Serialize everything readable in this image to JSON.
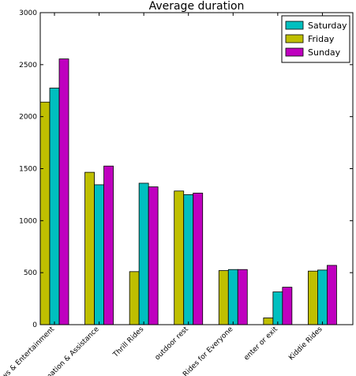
{
  "chart_data": {
    "type": "bar",
    "title": "Average duration",
    "xlabel": "",
    "ylabel": "",
    "categories": [
      "Shows & Entertainment",
      "Information & Assistance",
      "Thrill Rides",
      "outdoor rest",
      "Rides for Everyone",
      "enter or exit",
      "Kiddie Rides"
    ],
    "series": [
      {
        "name": "Friday",
        "color": "#bfbf00",
        "values": [
          2140,
          1465,
          510,
          1285,
          520,
          65,
          515
        ]
      },
      {
        "name": "Saturday",
        "color": "#00bfbf",
        "values": [
          2275,
          1345,
          1360,
          1250,
          530,
          315,
          525
        ]
      },
      {
        "name": "Sunday",
        "color": "#bf00bf",
        "values": [
          2555,
          1525,
          1325,
          1265,
          530,
          360,
          570
        ]
      }
    ],
    "legend_order": [
      "Saturday",
      "Friday",
      "Sunday"
    ],
    "ylim": [
      0,
      3000
    ],
    "yticks": [
      0,
      500,
      1000,
      1500,
      2000,
      2500,
      3000
    ],
    "grid": false,
    "legend_position": "top-right"
  }
}
